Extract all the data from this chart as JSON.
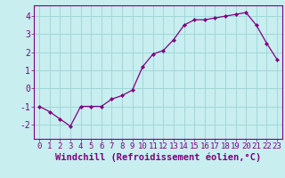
{
  "x": [
    0,
    1,
    2,
    3,
    4,
    5,
    6,
    7,
    8,
    9,
    10,
    11,
    12,
    13,
    14,
    15,
    16,
    17,
    18,
    19,
    20,
    21,
    22,
    23
  ],
  "y": [
    -1.0,
    -1.3,
    -1.7,
    -2.1,
    -1.0,
    -1.0,
    -1.0,
    -0.6,
    -0.4,
    -0.1,
    1.2,
    1.9,
    2.1,
    2.7,
    3.5,
    3.8,
    3.8,
    3.9,
    4.0,
    4.1,
    4.2,
    3.5,
    2.5,
    1.6
  ],
  "line_color": "#800080",
  "marker": "D",
  "marker_size": 2.2,
  "bg_color": "#c8eef0",
  "grid_color": "#a0d8d8",
  "xlabel": "Windchill (Refroidissement éolien,°C)",
  "ylim": [
    -2.8,
    4.6
  ],
  "xlim": [
    -0.5,
    23.5
  ],
  "yticks": [
    -2,
    -1,
    0,
    1,
    2,
    3,
    4
  ],
  "xticks": [
    0,
    1,
    2,
    3,
    4,
    5,
    6,
    7,
    8,
    9,
    10,
    11,
    12,
    13,
    14,
    15,
    16,
    17,
    18,
    19,
    20,
    21,
    22,
    23
  ],
  "tick_color": "#800080",
  "label_color": "#800080",
  "spine_color": "#800080",
  "tick_fontsize": 6.5,
  "xlabel_fontsize": 7.5
}
